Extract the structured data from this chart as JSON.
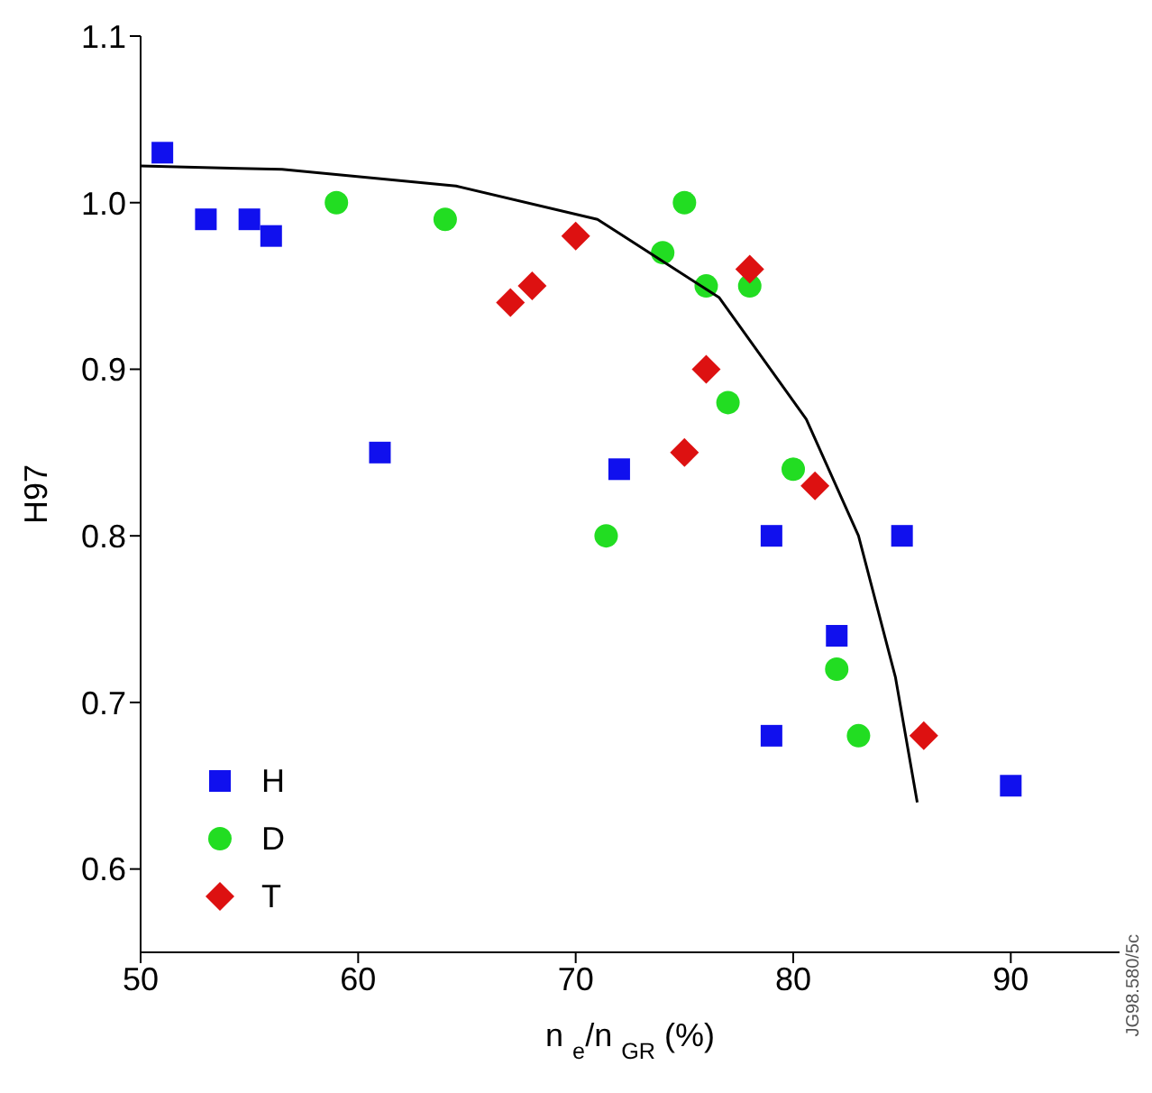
{
  "chart_data": {
    "type": "scatter",
    "xlabel": "n $_{e}$/n $_{GR}$ (%)",
    "ylabel": "H97",
    "xlim": [
      50,
      95
    ],
    "ylim": [
      0.55,
      1.1
    ],
    "xticks": [
      50,
      60,
      70,
      80,
      90
    ],
    "yticks": [
      {
        "value": 0.6,
        "label": "0.6"
      },
      {
        "value": 0.7,
        "label": "0.7"
      },
      {
        "value": 0.8,
        "label": "0.8"
      },
      {
        "value": 0.9,
        "label": "0.9"
      },
      {
        "value": 1.0,
        "label": "1.0"
      },
      {
        "value": 1.1,
        "label": "1.1"
      }
    ],
    "grid": false,
    "legend": "bottom left",
    "annotations": [
      "JG98.580/5c"
    ],
    "series": [
      {
        "name": "H",
        "color": "#1010ee",
        "marker": "square",
        "x": [
          51,
          53,
          55,
          56,
          61,
          72,
          79,
          79,
          82,
          85,
          90
        ],
        "values": [
          1.03,
          0.99,
          0.99,
          0.98,
          0.85,
          0.84,
          0.8,
          0.68,
          0.74,
          0.8,
          0.65
        ]
      },
      {
        "name": "D",
        "color": "#22dd22",
        "marker": "circle",
        "x": [
          59,
          64,
          71.4,
          74,
          75,
          76,
          77,
          78,
          80,
          82,
          83
        ],
        "values": [
          1.0,
          0.99,
          0.8,
          0.97,
          1.0,
          0.95,
          0.88,
          0.95,
          0.84,
          0.72,
          0.68
        ]
      },
      {
        "name": "T",
        "color": "#dd1111",
        "marker": "diamond",
        "x": [
          67,
          68,
          70,
          75,
          76,
          78,
          81,
          86
        ],
        "values": [
          0.94,
          0.95,
          0.98,
          0.85,
          0.9,
          0.96,
          0.83,
          0.68
        ]
      },
      {
        "type": "line",
        "color": "#000000",
        "marker": "none",
        "x": [
          50,
          56.5,
          64.5,
          71,
          76.6,
          80.6,
          83,
          84.7,
          85.7
        ],
        "values": [
          1.022,
          1.02,
          1.01,
          0.99,
          0.943,
          0.87,
          0.8,
          0.715,
          0.64
        ]
      }
    ]
  }
}
